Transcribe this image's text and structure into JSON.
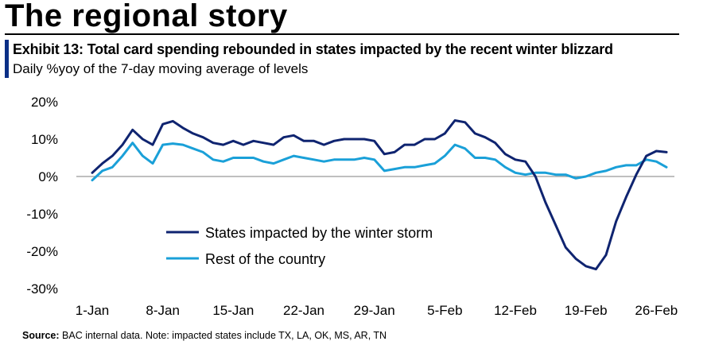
{
  "page": {
    "title": "The regional story",
    "exhibit_title": "Exhibit 13: Total card spending rebounded in states impacted by the recent winter blizzard",
    "exhibit_subtitle": "Daily %yoy of the 7-day moving average of levels",
    "source_label": "Source:",
    "source_text": " BAC internal data. Note: impacted states include  TX, LA, OK, MS, AR, TN"
  },
  "colors": {
    "accent": "#0b2f86",
    "series_storm": "#0f2470",
    "series_rest": "#1aa0d8",
    "axis": "#999999"
  },
  "chart_data": {
    "type": "line",
    "title": "",
    "xlabel": "",
    "ylabel": "",
    "x_ticks": [
      "1-Jan",
      "8-Jan",
      "15-Jan",
      "22-Jan",
      "29-Jan",
      "5-Feb",
      "12-Feb",
      "19-Feb",
      "26-Feb"
    ],
    "y_ticks": [
      "20%",
      "10%",
      "0%",
      "-10%",
      "-20%",
      "-30%"
    ],
    "ylim": [
      -30,
      20
    ],
    "y_unit": "%",
    "grid": false,
    "legend_position": "lower-left inside plot",
    "x_dates": [
      "1-Jan",
      "2-Jan",
      "3-Jan",
      "4-Jan",
      "5-Jan",
      "6-Jan",
      "7-Jan",
      "8-Jan",
      "9-Jan",
      "10-Jan",
      "11-Jan",
      "12-Jan",
      "13-Jan",
      "14-Jan",
      "15-Jan",
      "16-Jan",
      "17-Jan",
      "18-Jan",
      "19-Jan",
      "20-Jan",
      "21-Jan",
      "22-Jan",
      "23-Jan",
      "24-Jan",
      "25-Jan",
      "26-Jan",
      "27-Jan",
      "28-Jan",
      "29-Jan",
      "30-Jan",
      "31-Jan",
      "1-Feb",
      "2-Feb",
      "3-Feb",
      "4-Feb",
      "5-Feb",
      "6-Feb",
      "7-Feb",
      "8-Feb",
      "9-Feb",
      "10-Feb",
      "11-Feb",
      "12-Feb",
      "13-Feb",
      "14-Feb",
      "15-Feb",
      "16-Feb",
      "17-Feb",
      "18-Feb",
      "19-Feb",
      "20-Feb",
      "21-Feb",
      "22-Feb",
      "23-Feb",
      "24-Feb",
      "25-Feb",
      "26-Feb",
      "27-Feb"
    ],
    "series": [
      {
        "name": "States impacted by the winter storm",
        "color": "#0f2470",
        "values": [
          1.0,
          3.5,
          5.5,
          8.5,
          12.5,
          10.0,
          8.5,
          14.0,
          14.8,
          13.0,
          11.5,
          10.5,
          9.0,
          8.5,
          9.5,
          8.5,
          9.5,
          9.0,
          8.5,
          10.5,
          11.0,
          9.5,
          9.5,
          8.5,
          9.5,
          10.0,
          10.0,
          10.0,
          9.5,
          6.0,
          6.5,
          8.5,
          8.5,
          10.0,
          10.0,
          11.5,
          15.0,
          14.5,
          11.5,
          10.5,
          9.0,
          6.0,
          4.5,
          4.0,
          0.0,
          -7.0,
          -13.0,
          -19.0,
          -22.0,
          -24.0,
          -24.8,
          -21.0,
          -12.0,
          -5.5,
          0.5,
          5.5,
          6.8,
          6.5
        ]
      },
      {
        "name": "Rest of the country",
        "color": "#1aa0d8",
        "values": [
          -1.0,
          1.5,
          2.5,
          5.5,
          9.0,
          5.5,
          3.5,
          8.5,
          8.8,
          8.5,
          7.5,
          6.5,
          4.5,
          4.0,
          5.0,
          5.0,
          5.0,
          4.0,
          3.5,
          4.5,
          5.5,
          5.0,
          4.5,
          4.0,
          4.5,
          4.5,
          4.5,
          5.0,
          4.5,
          1.5,
          2.0,
          2.5,
          2.5,
          3.0,
          3.5,
          5.5,
          8.5,
          7.5,
          5.0,
          5.0,
          4.5,
          2.5,
          1.0,
          0.5,
          1.0,
          1.0,
          0.5,
          0.5,
          -0.5,
          0.0,
          1.0,
          1.5,
          2.5,
          3.0,
          3.0,
          4.5,
          4.0,
          2.5
        ]
      }
    ]
  }
}
